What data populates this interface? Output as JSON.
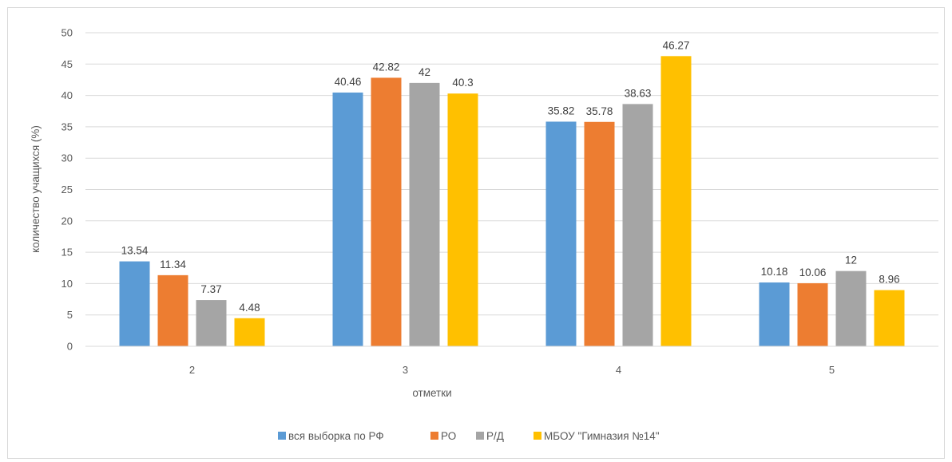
{
  "chart_data": {
    "type": "bar",
    "categories": [
      "2",
      "3",
      "4",
      "5"
    ],
    "series": [
      {
        "name": "вся выборка по РФ",
        "values": [
          13.54,
          40.46,
          35.82,
          10.18
        ],
        "color": "#5b9bd5"
      },
      {
        "name": "РО",
        "values": [
          11.34,
          42.82,
          35.78,
          10.06
        ],
        "color": "#ed7d31"
      },
      {
        "name": "Р/Д",
        "values": [
          7.37,
          42,
          38.63,
          12
        ],
        "color": "#a5a5a5"
      },
      {
        "name": "МБОУ \"Гимназия №14\"",
        "values": [
          4.48,
          40.3,
          46.27,
          8.96
        ],
        "color": "#ffc000"
      }
    ],
    "data_labels": [
      [
        "13.54",
        "40.46",
        "35.82",
        "10.18"
      ],
      [
        "11.34",
        "42.82",
        "35.78",
        "10.06"
      ],
      [
        "7.37",
        "42",
        "38.63",
        "12"
      ],
      [
        "4.48",
        "40.3",
        "46.27",
        "8.96"
      ]
    ],
    "xlabel": "отметки",
    "ylabel": "количество учащихся (%)",
    "ylim": [
      0,
      50
    ],
    "yticks": [
      "0",
      "5",
      "10",
      "15",
      "20",
      "25",
      "30",
      "35",
      "40",
      "45",
      "50"
    ],
    "grid": true,
    "legend_position": "bottom"
  }
}
